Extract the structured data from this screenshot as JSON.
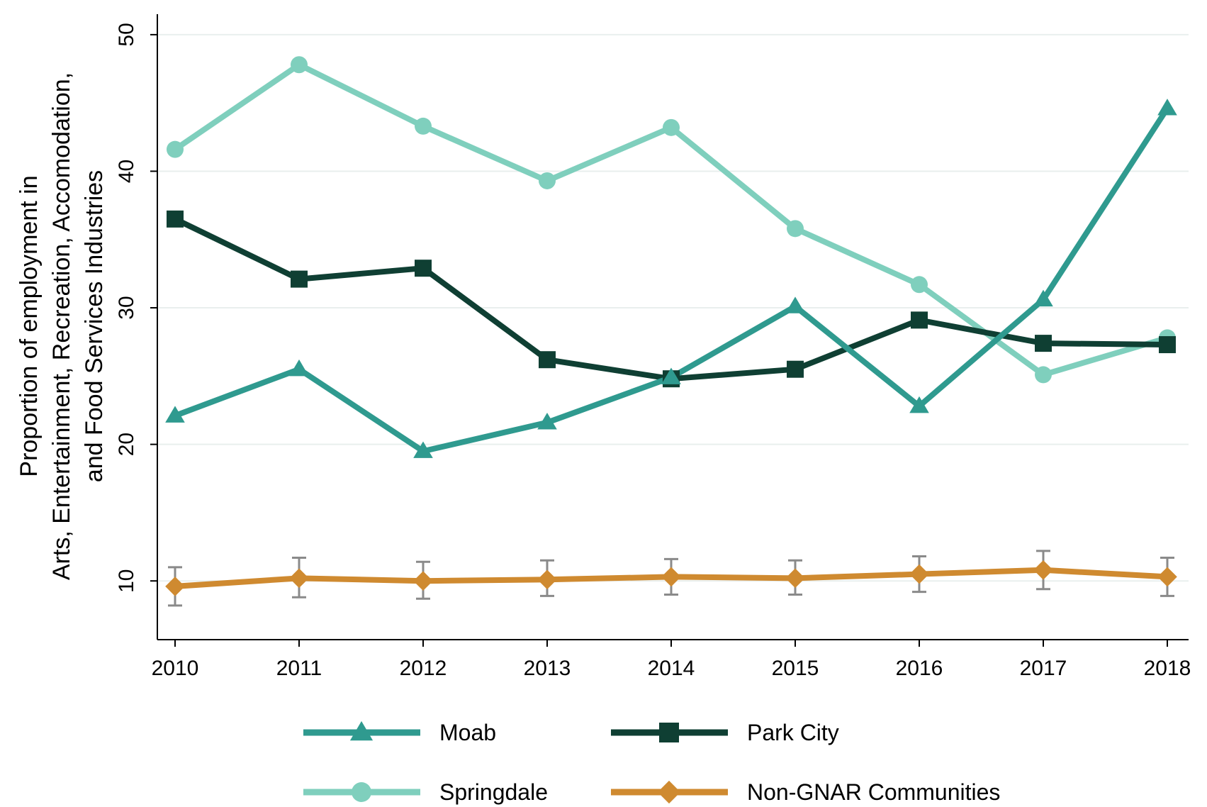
{
  "chart_data": {
    "type": "line",
    "title": "",
    "xlabel": "",
    "ylabel_lines": [
      "Proportion of employment in",
      "Arts, Entertainment, Recreation, Accomodation,",
      "and Food Services Industries"
    ],
    "x": [
      2010,
      2011,
      2012,
      2013,
      2014,
      2015,
      2016,
      2017,
      2018
    ],
    "xticks": [
      "2010",
      "2011",
      "2012",
      "2013",
      "2014",
      "2015",
      "2016",
      "2017",
      "2018"
    ],
    "yticks": [
      "10",
      "20",
      "30",
      "40",
      "50"
    ],
    "ytick_values": [
      10,
      20,
      30,
      40,
      50
    ],
    "ylim": [
      5.7,
      51.5
    ],
    "grid": "horizontal",
    "legend_position": "bottom",
    "series": [
      {
        "name": "Moab",
        "color": "#2f9a8f",
        "marker": "triangle",
        "values": [
          22.1,
          25.5,
          19.5,
          21.6,
          24.9,
          30.1,
          22.8,
          30.6,
          44.6
        ]
      },
      {
        "name": "Park City",
        "color": "#0f3f33",
        "marker": "square",
        "values": [
          36.5,
          32.1,
          32.9,
          26.2,
          24.8,
          25.5,
          29.1,
          27.4,
          27.3
        ]
      },
      {
        "name": "Springdale",
        "color": "#7fcfbd",
        "marker": "circle",
        "values": [
          41.6,
          47.8,
          43.3,
          39.3,
          43.2,
          35.8,
          31.7,
          25.1,
          27.8
        ]
      },
      {
        "name": "Non-GNAR Communities",
        "color": "#cf8a30",
        "marker": "diamond",
        "values": [
          9.6,
          10.2,
          10.0,
          10.1,
          10.3,
          10.2,
          10.5,
          10.8,
          10.3
        ],
        "error_low": [
          8.2,
          8.8,
          8.7,
          8.9,
          9.0,
          9.0,
          9.2,
          9.4,
          8.9
        ],
        "error_high": [
          11.0,
          11.7,
          11.4,
          11.5,
          11.6,
          11.5,
          11.8,
          12.2,
          11.7
        ]
      }
    ]
  }
}
